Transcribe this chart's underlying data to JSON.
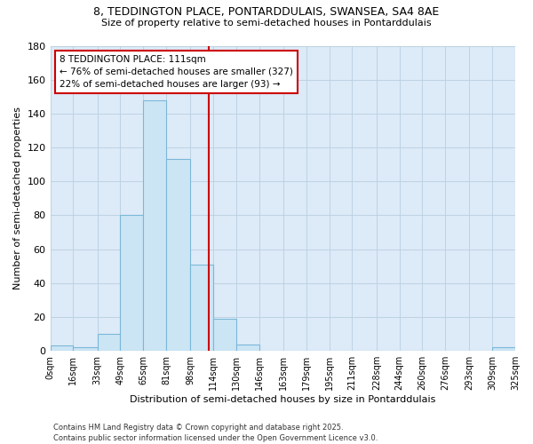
{
  "title_line1": "8, TEDDINGTON PLACE, PONTARDDULAIS, SWANSEA, SA4 8AE",
  "title_line2": "Size of property relative to semi-detached houses in Pontarddulais",
  "xlabel": "Distribution of semi-detached houses by size in Pontarddulais",
  "ylabel": "Number of semi-detached properties",
  "bin_edges": [
    0,
    16,
    33,
    49,
    65,
    81,
    98,
    114,
    130,
    146,
    163,
    179,
    195,
    211,
    228,
    244,
    260,
    276,
    293,
    309,
    325
  ],
  "bin_labels": [
    "0sqm",
    "16sqm",
    "33sqm",
    "49sqm",
    "65sqm",
    "81sqm",
    "98sqm",
    "114sqm",
    "130sqm",
    "146sqm",
    "163sqm",
    "179sqm",
    "195sqm",
    "211sqm",
    "228sqm",
    "244sqm",
    "260sqm",
    "276sqm",
    "293sqm",
    "309sqm",
    "325sqm"
  ],
  "counts": [
    3,
    2,
    10,
    80,
    148,
    113,
    51,
    19,
    4,
    0,
    0,
    0,
    0,
    0,
    0,
    0,
    0,
    0,
    0,
    2
  ],
  "bar_facecolor": "#cce5f5",
  "bar_edgecolor": "#7ab8d8",
  "property_size": 111,
  "vline_color": "#cc0000",
  "annotation_title": "8 TEDDINGTON PLACE: 111sqm",
  "annotation_line1": "← 76% of semi-detached houses are smaller (327)",
  "annotation_line2": "22% of semi-detached houses are larger (93) →",
  "annotation_box_edgecolor": "#cc0000",
  "annotation_box_facecolor": "#ffffff",
  "ylim": [
    0,
    180
  ],
  "yticks": [
    0,
    20,
    40,
    60,
    80,
    100,
    120,
    140,
    160,
    180
  ],
  "background_color": "#ffffff",
  "plot_bg_color": "#ddeaf7",
  "grid_color": "#b8cfe0",
  "footnote1": "Contains HM Land Registry data © Crown copyright and database right 2025.",
  "footnote2": "Contains public sector information licensed under the Open Government Licence v3.0."
}
